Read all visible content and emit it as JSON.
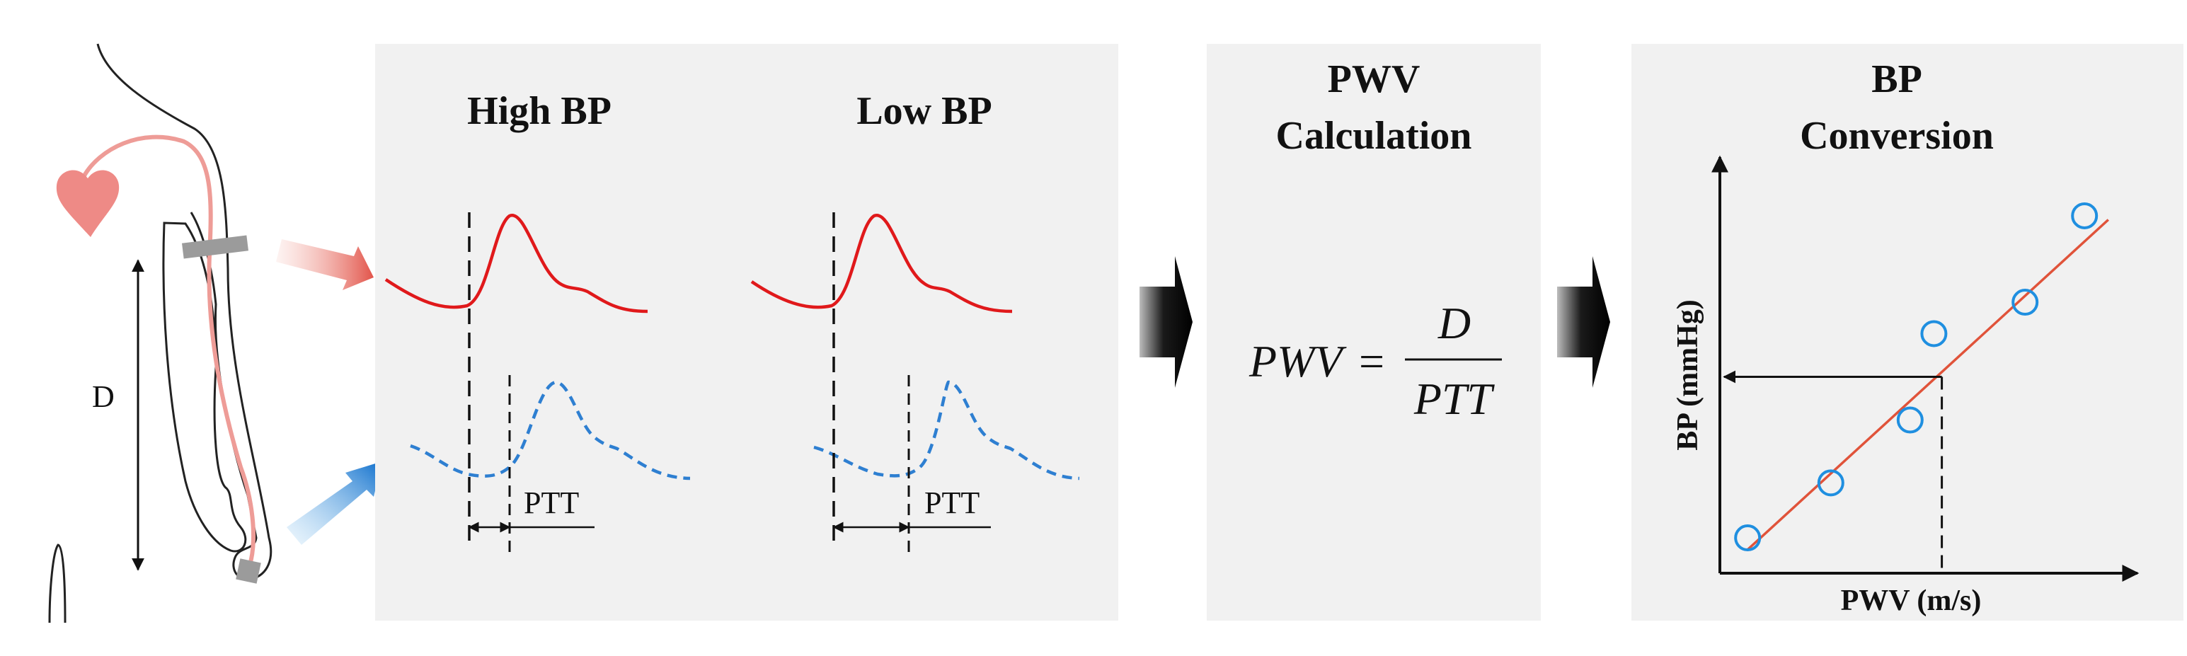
{
  "body_illustration": {
    "distance_label": "D"
  },
  "bp_panel": {
    "high_title": "High BP",
    "low_title": "Low BP",
    "ptt_label": "PTT"
  },
  "pwv_panel": {
    "title_line1": "PWV",
    "title_line2": "Calculation",
    "formula_lhs": "PWV",
    "formula_equals": "=",
    "formula_numerator": "D",
    "formula_denominator": "PTT"
  },
  "conversion_panel": {
    "title_line1": "BP",
    "title_line2": "Conversion"
  },
  "colors": {
    "panel_bg": "#f1f1f1",
    "proximal_wave": "#e0191b",
    "distal_wave": "#2e7fd1",
    "regression_line": "#e0533a",
    "heart": "#ee8a86",
    "marker": "#1f8fe0"
  },
  "chart_data": {
    "type": "scatter",
    "xlabel": "PWV (m/s)",
    "ylabel": "BP (mmHg)",
    "x_ticks": [],
    "y_ticks": [],
    "xlim": [
      0,
      10
    ],
    "ylim": [
      0,
      10
    ],
    "series": [
      {
        "x": [
          0.7,
          2.8,
          4.8,
          5.4,
          7.7,
          9.2
        ],
        "y": [
          0.9,
          2.3,
          3.9,
          6.1,
          6.9,
          9.1
        ]
      }
    ],
    "fit_line": {
      "x": [
        0.7,
        9.8
      ],
      "y": [
        0.6,
        9.0
      ]
    },
    "readout": {
      "x": 5.6,
      "y": 5.0
    }
  }
}
